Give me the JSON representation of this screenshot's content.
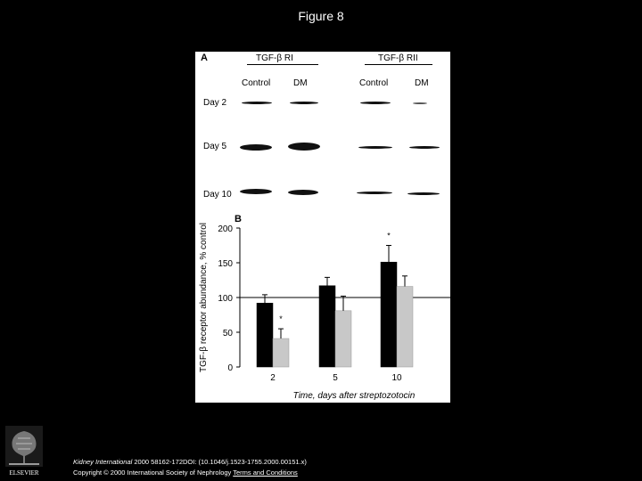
{
  "slide": {
    "title": "Figure 8"
  },
  "panel_a": {
    "letter": "A",
    "groups": [
      {
        "header": "TGF-β RI",
        "columns": [
          "Control",
          "DM"
        ]
      },
      {
        "header": "TGF-β RII",
        "columns": [
          "Control",
          "DM"
        ]
      }
    ],
    "rows": [
      "Day 2",
      "Day 5",
      "Day 10"
    ]
  },
  "chart_data": {
    "type": "bar",
    "panel_letter": "B",
    "categories": [
      "2",
      "5",
      "10"
    ],
    "series": [
      {
        "name": "Control",
        "values": [
          92,
          117,
          151
        ],
        "errors": [
          12,
          12,
          24
        ],
        "color": "#000000"
      },
      {
        "name": "DM",
        "values": [
          41,
          81,
          116
        ],
        "errors": [
          14,
          21,
          15
        ],
        "color": "#c8c8c8"
      }
    ],
    "significance": [
      {
        "category": "2",
        "series": "DM",
        "marker": "*"
      },
      {
        "category": "10",
        "series": "Control",
        "marker": "*"
      }
    ],
    "reference_line": 100,
    "ylim": [
      0,
      200
    ],
    "yticks": [
      0,
      50,
      100,
      150,
      200
    ],
    "ylabel": "TGF-β receptor abundance, % control",
    "xlabel": "Time, days after streptozotocin",
    "grid": false
  },
  "footer": {
    "journal": "Kidney International",
    "citation": " 2000 58162-172DOI: (10.1046/j.1523-1755.2000.00151.x)",
    "copyright": "Copyright © 2000 International Society of Nephrology",
    "terms_link": "Terms and Conditions"
  },
  "logo": {
    "text": "ELSEVIER"
  }
}
